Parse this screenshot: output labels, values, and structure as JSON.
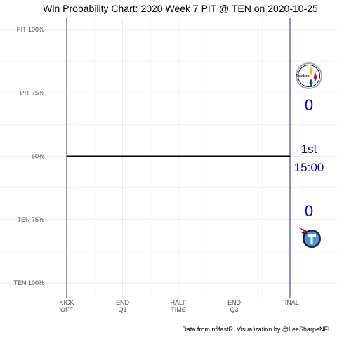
{
  "chart_data": {
    "type": "line",
    "title": "Win Probability Chart: 2020 Week 7 PIT @ TEN on 2020-10-25",
    "caption": "Data from nflfastR, Visualization by @LeeSharpeNFL",
    "y_ticks": [
      {
        "value": 100,
        "label": "PIT 100%"
      },
      {
        "value": 75,
        "label": "PIT 75%"
      },
      {
        "value": 50,
        "label": "50%"
      },
      {
        "value": 25,
        "label": "TEN 75%"
      },
      {
        "value": 0,
        "label": "TEN 100%"
      }
    ],
    "x_ticks": [
      {
        "value": 0,
        "label": [
          "KICK",
          "OFF"
        ]
      },
      {
        "value": 15,
        "label": [
          "END",
          "Q1"
        ]
      },
      {
        "value": 30,
        "label": [
          "HALF",
          "TIME"
        ]
      },
      {
        "value": 45,
        "label": [
          "END",
          "Q3"
        ]
      },
      {
        "value": 60,
        "label": [
          "FINAL"
        ]
      }
    ],
    "xlim": [
      0,
      60
    ],
    "ylim": [
      0,
      100
    ],
    "series": [
      {
        "x": [
          0,
          60
        ],
        "y": [
          50,
          50
        ],
        "color": "#000000"
      }
    ],
    "grid": true,
    "vlines": [
      0,
      60
    ],
    "vline_color": "#1a237e",
    "away_team": {
      "abbr": "PIT",
      "score": "0",
      "logo": "steelers-logo"
    },
    "home_team": {
      "abbr": "TEN",
      "score": "0",
      "logo": "titans-logo"
    },
    "clock": {
      "quarter": "1st",
      "time": "15:00"
    },
    "score_color": "#0000cc"
  }
}
